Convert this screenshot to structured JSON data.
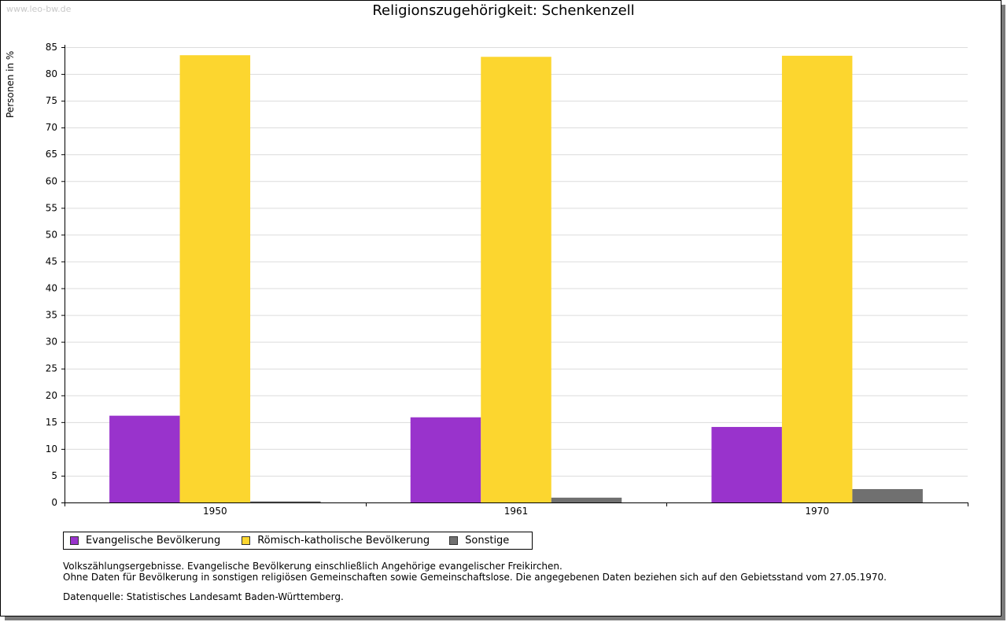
{
  "watermark": "www.leo-bw.de",
  "chart_data": {
    "type": "bar",
    "title": "Religionszugehörigkeit: Schenkenzell",
    "xlabel": "",
    "ylabel": "Personen in %",
    "ylim": [
      0,
      85
    ],
    "yticks": [
      0,
      5,
      10,
      15,
      20,
      25,
      30,
      35,
      40,
      45,
      50,
      55,
      60,
      65,
      70,
      75,
      80,
      85
    ],
    "grid": true,
    "legend_position": "bottom-left",
    "categories": [
      "1950",
      "1961",
      "1970"
    ],
    "series": [
      {
        "name": "Evangelische Bevölkerung",
        "color": "#9933cc",
        "values": [
          16.2,
          15.9,
          14.1
        ]
      },
      {
        "name": "Römisch-katholische Bevölkerung",
        "color": "#fcd62f",
        "values": [
          83.5,
          83.2,
          83.4
        ]
      },
      {
        "name": "Sonstige",
        "color": "#707070",
        "values": [
          0.2,
          0.9,
          2.5
        ]
      }
    ]
  },
  "notes": {
    "line1": "Volkszählungsergebnisse. Evangelische Bevölkerung einschließlich Angehörige evangelischer Freikirchen.",
    "line2": "Ohne Daten für Bevölkerung in sonstigen religiösen Gemeinschaften sowie Gemeinschaftslose. Die angegebenen Daten beziehen sich auf den Gebietsstand vom 27.05.1970."
  },
  "source": "Datenquelle: Statistisches Landesamt Baden-Württemberg."
}
